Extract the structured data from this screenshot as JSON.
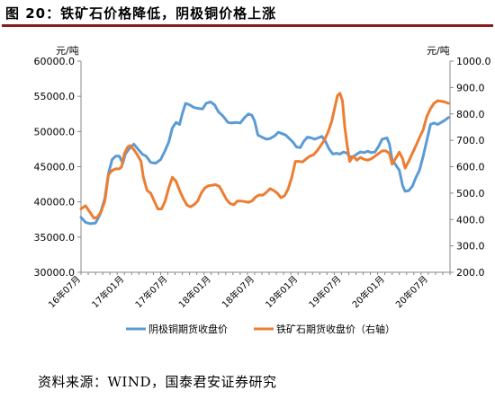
{
  "figure_title": "图 20：铁矿石价格降低，阴极铜价格上涨",
  "source": "资料来源：WIND，国泰君安证券研究",
  "chart_data": {
    "type": "line",
    "title": "",
    "left_axis": {
      "unit": "元/吨",
      "min": 30000,
      "max": 60000,
      "ticks": [
        "30000.0",
        "35000.0",
        "40000.0",
        "45000.0",
        "50000.0",
        "55000.0",
        "60000.0"
      ]
    },
    "right_axis": {
      "unit": "元/吨",
      "min": 200,
      "max": 1000,
      "ticks": [
        "200.0",
        "300.0",
        "400.0",
        "500.0",
        "600.0",
        "700.0",
        "800.0",
        "900.0",
        "1000.0"
      ]
    },
    "x_ticks": [
      "16年07月",
      "17年01月",
      "17年07月",
      "18年01月",
      "18年07月",
      "19年01月",
      "19年07月",
      "20年01月",
      "20年07月"
    ],
    "x_range": [
      "2016-07",
      "2020-10"
    ],
    "legend_position": "bottom",
    "grid": false,
    "series": [
      {
        "name": "阴极铜期货收盘价",
        "axis": "left",
        "color": "#5b9bd5",
        "points": [
          [
            "2016-07-01",
            37800
          ],
          [
            "2016-07-20",
            37100
          ],
          [
            "2016-08-10",
            36900
          ],
          [
            "2016-09-01",
            37000
          ],
          [
            "2016-09-20",
            38200
          ],
          [
            "2016-10-10",
            40500
          ],
          [
            "2016-10-25",
            44000
          ],
          [
            "2016-11-10",
            46000
          ],
          [
            "2016-11-25",
            46500
          ],
          [
            "2016-12-10",
            46500
          ],
          [
            "2016-12-25",
            45500
          ],
          [
            "2017-01-05",
            46800
          ],
          [
            "2017-01-20",
            47500
          ],
          [
            "2017-02-10",
            48200
          ],
          [
            "2017-02-25",
            47600
          ],
          [
            "2017-03-15",
            46800
          ],
          [
            "2017-04-01",
            46500
          ],
          [
            "2017-04-20",
            45600
          ],
          [
            "2017-05-10",
            45500
          ],
          [
            "2017-06-01",
            46000
          ],
          [
            "2017-06-20",
            47300
          ],
          [
            "2017-07-05",
            48500
          ],
          [
            "2017-07-20",
            50500
          ],
          [
            "2017-08-05",
            51300
          ],
          [
            "2017-08-20",
            51000
          ],
          [
            "2017-09-01",
            52500
          ],
          [
            "2017-09-15",
            54000
          ],
          [
            "2017-10-01",
            53800
          ],
          [
            "2017-10-20",
            53400
          ],
          [
            "2017-11-05",
            53300
          ],
          [
            "2017-11-25",
            53200
          ],
          [
            "2017-12-10",
            54000
          ],
          [
            "2017-12-28",
            54200
          ],
          [
            "2018-01-15",
            53800
          ],
          [
            "2018-02-01",
            52800
          ],
          [
            "2018-02-20",
            52200
          ],
          [
            "2018-03-10",
            51300
          ],
          [
            "2018-03-25",
            51200
          ],
          [
            "2018-04-15",
            51300
          ],
          [
            "2018-05-01",
            51200
          ],
          [
            "2018-05-20",
            52000
          ],
          [
            "2018-06-05",
            52500
          ],
          [
            "2018-06-20",
            52300
          ],
          [
            "2018-07-01",
            51500
          ],
          [
            "2018-07-15",
            49500
          ],
          [
            "2018-08-01",
            49200
          ],
          [
            "2018-08-20",
            48900
          ],
          [
            "2018-09-05",
            49000
          ],
          [
            "2018-09-25",
            49400
          ],
          [
            "2018-10-10",
            49900
          ],
          [
            "2018-10-25",
            49700
          ],
          [
            "2018-11-10",
            49500
          ],
          [
            "2018-11-25",
            49000
          ],
          [
            "2018-12-10",
            48500
          ],
          [
            "2018-12-25",
            47800
          ],
          [
            "2019-01-10",
            47700
          ],
          [
            "2019-01-25",
            48600
          ],
          [
            "2019-02-10",
            49200
          ],
          [
            "2019-02-25",
            49100
          ],
          [
            "2019-03-10",
            48900
          ],
          [
            "2019-03-25",
            49100
          ],
          [
            "2019-04-10",
            49300
          ],
          [
            "2019-04-25",
            48600
          ],
          [
            "2019-05-10",
            47500
          ],
          [
            "2019-05-25",
            46800
          ],
          [
            "2019-06-10",
            46900
          ],
          [
            "2019-06-25",
            46800
          ],
          [
            "2019-07-10",
            47100
          ],
          [
            "2019-07-25",
            46900
          ],
          [
            "2019-08-05",
            46400
          ],
          [
            "2019-08-20",
            46400
          ],
          [
            "2019-09-05",
            46800
          ],
          [
            "2019-09-20",
            47100
          ],
          [
            "2019-10-05",
            47000
          ],
          [
            "2019-10-20",
            47200
          ],
          [
            "2019-11-05",
            47000
          ],
          [
            "2019-11-20",
            47100
          ],
          [
            "2019-12-05",
            47900
          ],
          [
            "2019-12-20",
            48900
          ],
          [
            "2020-01-10",
            49100
          ],
          [
            "2020-01-20",
            48200
          ],
          [
            "2020-02-01",
            46000
          ],
          [
            "2020-02-15",
            45300
          ],
          [
            "2020-03-01",
            44500
          ],
          [
            "2020-03-15",
            42300
          ],
          [
            "2020-03-25",
            41500
          ],
          [
            "2020-04-10",
            41600
          ],
          [
            "2020-04-25",
            42200
          ],
          [
            "2020-05-10",
            43500
          ],
          [
            "2020-05-25",
            44500
          ],
          [
            "2020-06-10",
            46500
          ],
          [
            "2020-06-25",
            48700
          ],
          [
            "2020-07-10",
            51000
          ],
          [
            "2020-07-25",
            51200
          ],
          [
            "2020-08-10",
            51000
          ],
          [
            "2020-08-25",
            51300
          ],
          [
            "2020-09-10",
            51600
          ],
          [
            "2020-09-25",
            52000
          ]
        ]
      },
      {
        "name": "铁矿石期货收盘价（右轴）",
        "axis": "right",
        "color": "#ed7d31",
        "points": [
          [
            "2016-07-01",
            440
          ],
          [
            "2016-07-20",
            452
          ],
          [
            "2016-08-10",
            425
          ],
          [
            "2016-08-25",
            405
          ],
          [
            "2016-09-10",
            410
          ],
          [
            "2016-09-25",
            430
          ],
          [
            "2016-10-10",
            470
          ],
          [
            "2016-10-25",
            570
          ],
          [
            "2016-11-10",
            585
          ],
          [
            "2016-11-25",
            592
          ],
          [
            "2016-12-10",
            592
          ],
          [
            "2016-12-20",
            600
          ],
          [
            "2017-01-01",
            650
          ],
          [
            "2017-01-15",
            675
          ],
          [
            "2017-01-25",
            680
          ],
          [
            "2017-02-10",
            665
          ],
          [
            "2017-02-25",
            645
          ],
          [
            "2017-03-10",
            620
          ],
          [
            "2017-03-20",
            560
          ],
          [
            "2017-04-05",
            510
          ],
          [
            "2017-04-20",
            500
          ],
          [
            "2017-05-05",
            470
          ],
          [
            "2017-05-20",
            440
          ],
          [
            "2017-06-05",
            440
          ],
          [
            "2017-06-20",
            470
          ],
          [
            "2017-07-05",
            520
          ],
          [
            "2017-07-20",
            560
          ],
          [
            "2017-08-05",
            545
          ],
          [
            "2017-08-20",
            510
          ],
          [
            "2017-09-05",
            480
          ],
          [
            "2017-09-20",
            455
          ],
          [
            "2017-10-05",
            448
          ],
          [
            "2017-10-20",
            456
          ],
          [
            "2017-11-05",
            470
          ],
          [
            "2017-11-20",
            500
          ],
          [
            "2017-12-05",
            520
          ],
          [
            "2017-12-20",
            528
          ],
          [
            "2018-01-05",
            530
          ],
          [
            "2018-01-20",
            532
          ],
          [
            "2018-02-05",
            525
          ],
          [
            "2018-02-20",
            500
          ],
          [
            "2018-03-05",
            475
          ],
          [
            "2018-03-20",
            460
          ],
          [
            "2018-04-05",
            456
          ],
          [
            "2018-04-20",
            470
          ],
          [
            "2018-05-05",
            470
          ],
          [
            "2018-05-20",
            468
          ],
          [
            "2018-06-05",
            465
          ],
          [
            "2018-06-20",
            470
          ],
          [
            "2018-07-05",
            485
          ],
          [
            "2018-07-20",
            493
          ],
          [
            "2018-08-05",
            492
          ],
          [
            "2018-08-20",
            503
          ],
          [
            "2018-09-05",
            517
          ],
          [
            "2018-09-20",
            510
          ],
          [
            "2018-10-05",
            500
          ],
          [
            "2018-10-20",
            483
          ],
          [
            "2018-11-05",
            490
          ],
          [
            "2018-11-20",
            515
          ],
          [
            "2018-12-05",
            560
          ],
          [
            "2018-12-20",
            620
          ],
          [
            "2019-01-05",
            620
          ],
          [
            "2019-01-20",
            618
          ],
          [
            "2019-02-05",
            630
          ],
          [
            "2019-02-20",
            640
          ],
          [
            "2019-03-05",
            645
          ],
          [
            "2019-03-20",
            660
          ],
          [
            "2019-04-05",
            680
          ],
          [
            "2019-04-20",
            700
          ],
          [
            "2019-05-05",
            730
          ],
          [
            "2019-05-20",
            770
          ],
          [
            "2019-06-05",
            830
          ],
          [
            "2019-06-15",
            870
          ],
          [
            "2019-06-25",
            878
          ],
          [
            "2019-07-05",
            850
          ],
          [
            "2019-07-15",
            750
          ],
          [
            "2019-07-25",
            680
          ],
          [
            "2019-08-05",
            620
          ],
          [
            "2019-08-20",
            640
          ],
          [
            "2019-09-05",
            625
          ],
          [
            "2019-09-20",
            635
          ],
          [
            "2019-10-05",
            628
          ],
          [
            "2019-10-20",
            625
          ],
          [
            "2019-11-05",
            630
          ],
          [
            "2019-11-20",
            640
          ],
          [
            "2019-12-05",
            650
          ],
          [
            "2019-12-20",
            660
          ],
          [
            "2020-01-05",
            660
          ],
          [
            "2020-01-20",
            650
          ],
          [
            "2020-02-01",
            610
          ],
          [
            "2020-02-15",
            630
          ],
          [
            "2020-03-01",
            655
          ],
          [
            "2020-03-15",
            630
          ],
          [
            "2020-03-25",
            595
          ],
          [
            "2020-04-10",
            620
          ],
          [
            "2020-04-25",
            650
          ],
          [
            "2020-05-10",
            680
          ],
          [
            "2020-05-25",
            710
          ],
          [
            "2020-06-10",
            740
          ],
          [
            "2020-06-25",
            790
          ],
          [
            "2020-07-10",
            820
          ],
          [
            "2020-07-25",
            840
          ],
          [
            "2020-08-10",
            850
          ],
          [
            "2020-08-25",
            848
          ],
          [
            "2020-09-10",
            845
          ],
          [
            "2020-09-25",
            840
          ]
        ]
      }
    ]
  }
}
